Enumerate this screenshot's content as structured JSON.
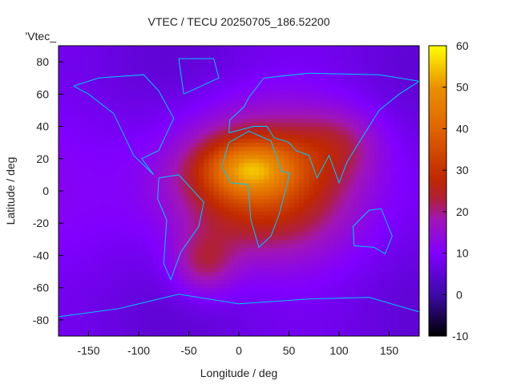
{
  "chart_data": {
    "type": "heatmap",
    "title": "VTEC / TECU 20250705_186.52200",
    "key_label": "'Vtec_",
    "xlabel": "Longitude / deg",
    "ylabel": "Latitude / deg",
    "xlim": [
      -180,
      180
    ],
    "ylim": [
      -90,
      90
    ],
    "xticks": [
      -150,
      -100,
      -50,
      0,
      50,
      100,
      150
    ],
    "yticks": [
      -80,
      -60,
      -40,
      -20,
      0,
      20,
      40,
      60,
      80
    ],
    "cblim": [
      -10,
      60
    ],
    "cbticks": [
      -10,
      0,
      10,
      20,
      30,
      40,
      50,
      60
    ],
    "grid_resolution_deg": {
      "lon": 5,
      "lat": 2.5
    },
    "field_model": {
      "background": 8,
      "components": [
        {
          "lon": 20,
          "lat": 5,
          "sigma_lon": 60,
          "sigma_lat": 30,
          "amplitude": 24
        },
        {
          "lon": 10,
          "lat": 14,
          "sigma_lon": 32,
          "sigma_lat": 12,
          "amplitude": 22
        },
        {
          "lon": -35,
          "lat": -45,
          "sigma_lon": 22,
          "sigma_lat": 14,
          "amplitude": 12
        },
        {
          "lon": 100,
          "lat": 30,
          "sigma_lon": 30,
          "sigma_lat": 15,
          "amplitude": 8
        }
      ]
    },
    "palette": [
      [
        -10,
        "#000000"
      ],
      [
        0,
        "#3c0aa8"
      ],
      [
        10,
        "#8000ff"
      ],
      [
        18,
        "#a015b8"
      ],
      [
        23,
        "#b0203a"
      ],
      [
        28,
        "#c02800"
      ],
      [
        40,
        "#e06400"
      ],
      [
        50,
        "#ea9000"
      ],
      [
        60,
        "#ffff00"
      ]
    ],
    "coastline_color": "#00c8ff",
    "coastlines": [
      {
        "name": "africa",
        "points": [
          [
            -17,
            15
          ],
          [
            -10,
            30
          ],
          [
            10,
            37
          ],
          [
            32,
            31
          ],
          [
            43,
            12
          ],
          [
            51,
            11
          ],
          [
            40,
            -15
          ],
          [
            32,
            -28
          ],
          [
            20,
            -35
          ],
          [
            12,
            -18
          ],
          [
            9,
            4
          ],
          [
            -8,
            5
          ],
          [
            -17,
            15
          ]
        ]
      },
      {
        "name": "south-america",
        "points": [
          [
            -80,
            8
          ],
          [
            -60,
            10
          ],
          [
            -35,
            -7
          ],
          [
            -40,
            -22
          ],
          [
            -58,
            -38
          ],
          [
            -68,
            -55
          ],
          [
            -75,
            -45
          ],
          [
            -72,
            -18
          ],
          [
            -81,
            -5
          ],
          [
            -80,
            8
          ]
        ]
      },
      {
        "name": "north-america",
        "points": [
          [
            -165,
            65
          ],
          [
            -140,
            70
          ],
          [
            -95,
            72
          ],
          [
            -80,
            62
          ],
          [
            -65,
            45
          ],
          [
            -80,
            25
          ],
          [
            -97,
            20
          ],
          [
            -85,
            10
          ],
          [
            -105,
            22
          ],
          [
            -125,
            48
          ],
          [
            -150,
            60
          ],
          [
            -165,
            65
          ]
        ]
      },
      {
        "name": "eurasia",
        "points": [
          [
            -10,
            36
          ],
          [
            -9,
            44
          ],
          [
            5,
            52
          ],
          [
            10,
            58
          ],
          [
            25,
            70
          ],
          [
            70,
            73
          ],
          [
            140,
            72
          ],
          [
            180,
            68
          ],
          [
            160,
            60
          ],
          [
            140,
            50
          ],
          [
            120,
            30
          ],
          [
            108,
            18
          ],
          [
            100,
            5
          ],
          [
            90,
            22
          ],
          [
            78,
            8
          ],
          [
            70,
            22
          ],
          [
            57,
            25
          ],
          [
            50,
            30
          ],
          [
            35,
            33
          ],
          [
            28,
            40
          ],
          [
            15,
            40
          ],
          [
            -10,
            36
          ]
        ]
      },
      {
        "name": "australia",
        "points": [
          [
            114,
            -22
          ],
          [
            130,
            -12
          ],
          [
            142,
            -11
          ],
          [
            153,
            -28
          ],
          [
            146,
            -39
          ],
          [
            135,
            -35
          ],
          [
            115,
            -34
          ],
          [
            114,
            -22
          ]
        ]
      },
      {
        "name": "greenland",
        "points": [
          [
            -55,
            60
          ],
          [
            -20,
            70
          ],
          [
            -25,
            82
          ],
          [
            -60,
            82
          ],
          [
            -55,
            60
          ]
        ]
      },
      {
        "name": "antarctica",
        "points": [
          [
            -180,
            -78
          ],
          [
            -120,
            -73
          ],
          [
            -60,
            -64
          ],
          [
            0,
            -70
          ],
          [
            70,
            -67
          ],
          [
            130,
            -66
          ],
          [
            180,
            -75
          ]
        ]
      }
    ]
  }
}
